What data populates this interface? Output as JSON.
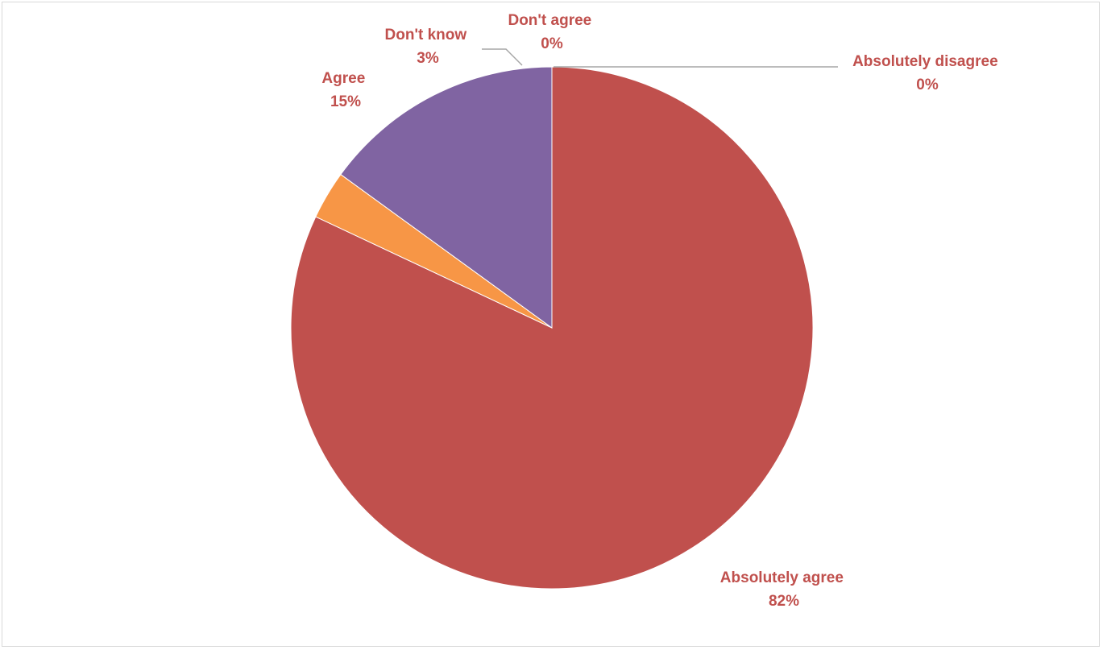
{
  "chart_data": {
    "type": "pie",
    "slices": [
      {
        "category": "Absolutely agree",
        "value": 82,
        "label": "82%",
        "color": "#C0504D"
      },
      {
        "category": "Absolutely disagree",
        "value": 0,
        "label": "0%",
        "color": "#4BACC6"
      },
      {
        "category": "Don't agree",
        "value": 0,
        "label": "0%",
        "color": "#9BBB59"
      },
      {
        "category": "Don't know",
        "value": 3,
        "label": "3%",
        "color": "#F79646"
      },
      {
        "category": "Agree",
        "value": 15,
        "label": "15%",
        "color": "#8064A2"
      }
    ],
    "label_color": "#C0504D",
    "leader_line_color": "#A6A6A6",
    "start_angle": "12 o'clock",
    "direction": "clockwise",
    "legend": "none"
  }
}
